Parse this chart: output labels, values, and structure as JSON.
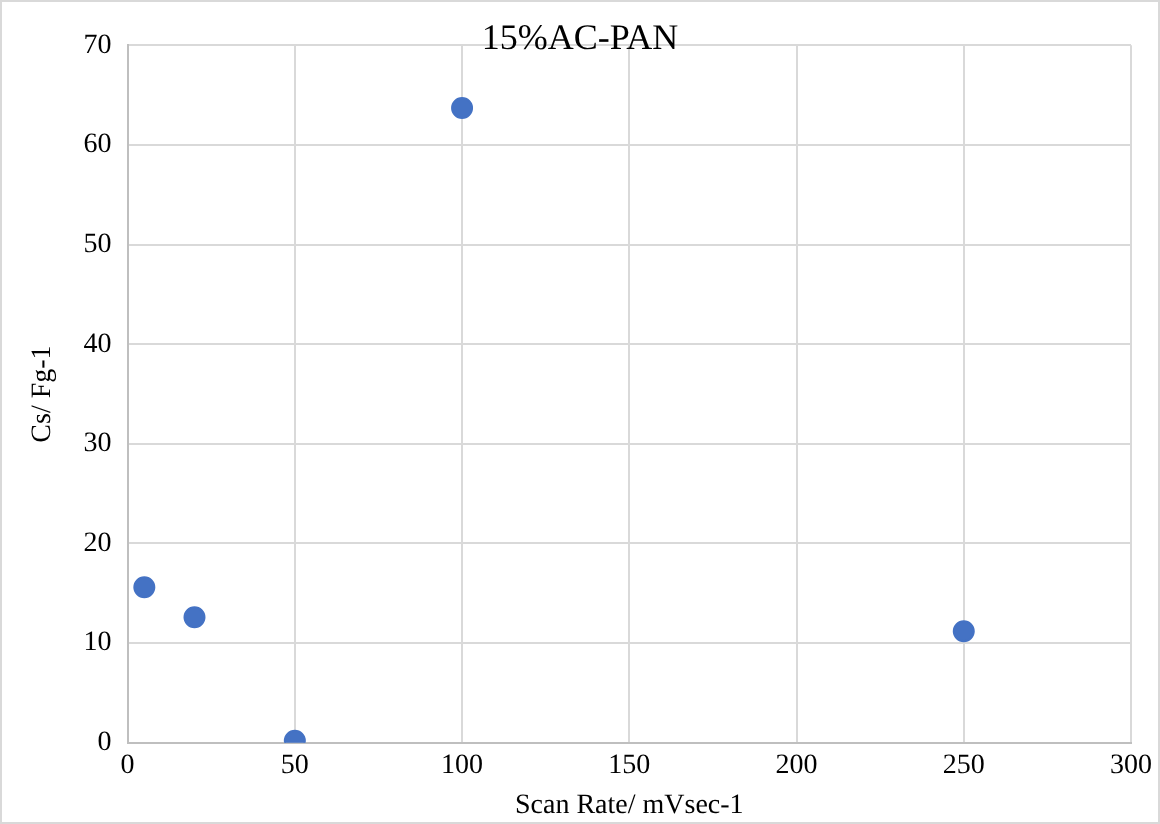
{
  "chart_data": {
    "type": "scatter",
    "title": "15%AC-PAN",
    "xlabel": "Scan Rate/ mVsec-1",
    "ylabel": "Cs/ Fg-1",
    "x": [
      5,
      20,
      50,
      100,
      250
    ],
    "values": [
      15.6,
      12.6,
      0.2,
      63.7,
      11.2
    ],
    "color": "#4472c4",
    "marker": "circle",
    "xlim": [
      0,
      300
    ],
    "xticks": [
      0,
      50,
      100,
      150,
      200,
      250,
      300
    ],
    "ylim": [
      0,
      70
    ],
    "yticks": [
      0,
      10,
      20,
      30,
      40,
      50,
      60,
      70
    ],
    "grid": true,
    "legend": false
  }
}
